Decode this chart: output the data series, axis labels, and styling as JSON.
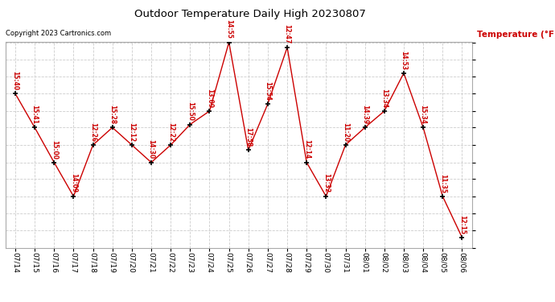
{
  "title": "Outdoor Temperature Daily High 20230807",
  "copyright": "Copyright 2023 Cartronics.com",
  "ylabel": "Temperature (°F)",
  "dates": [
    "07/14",
    "07/15",
    "07/16",
    "07/17",
    "07/18",
    "07/19",
    "07/20",
    "07/21",
    "07/22",
    "07/23",
    "07/24",
    "07/25",
    "07/26",
    "07/27",
    "07/28",
    "07/29",
    "07/30",
    "07/31",
    "08/01",
    "08/02",
    "08/03",
    "08/04",
    "08/05",
    "08/06"
  ],
  "temps": [
    89.0,
    85.7,
    82.3,
    79.0,
    84.0,
    85.7,
    84.0,
    82.3,
    84.0,
    86.0,
    87.3,
    94.0,
    83.5,
    88.0,
    93.5,
    82.3,
    79.0,
    84.0,
    85.7,
    87.3,
    91.0,
    85.7,
    79.0,
    75.0
  ],
  "times": [
    "15:40",
    "15:41",
    "15:00",
    "14:09",
    "12:26",
    "15:28",
    "12:12",
    "14:30",
    "12:22",
    "15:50",
    "13:09",
    "14:55",
    "17:58",
    "15:54",
    "12:47",
    "12:14",
    "13:32",
    "11:20",
    "14:39",
    "13:34",
    "14:53",
    "15:34",
    "11:35",
    "12:15"
  ],
  "ylim": [
    74.0,
    94.0
  ],
  "yticks": [
    74.0,
    75.7,
    77.3,
    79.0,
    80.7,
    82.3,
    84.0,
    85.7,
    87.3,
    89.0,
    90.7,
    92.3,
    94.0
  ],
  "line_color": "#cc0000",
  "marker_color": "#000000",
  "bg_color": "#ffffff",
  "grid_color": "#cccccc",
  "title_color": "#000000",
  "label_color": "#cc0000",
  "copyright_color": "#000000",
  "figwidth": 6.9,
  "figheight": 3.75,
  "dpi": 100
}
